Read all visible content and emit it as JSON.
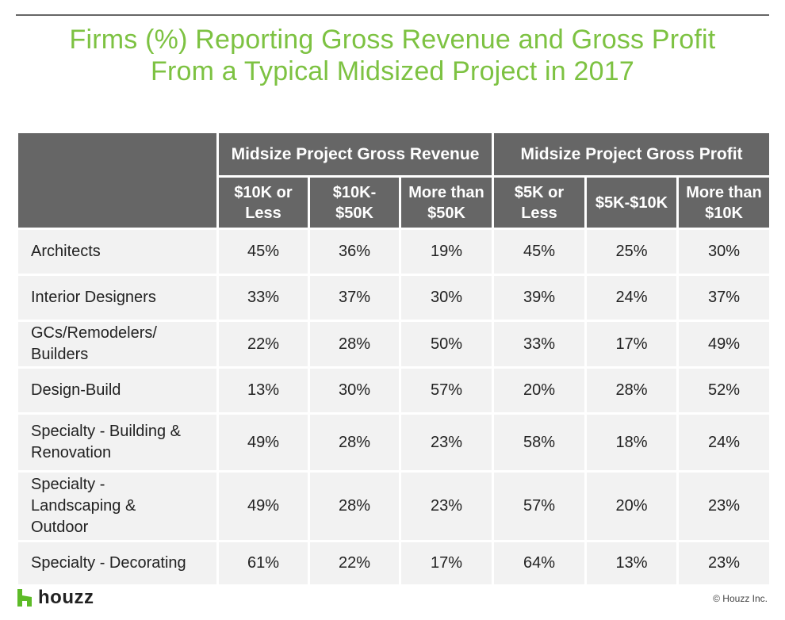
{
  "title": {
    "line1": "Firms (%) Reporting Gross Revenue and Gross Profit",
    "line2": "From a Typical Midsized Project in 2017"
  },
  "colors": {
    "title_green": "#7dc242",
    "header_gray": "#666666",
    "cell_bg": "#f2f2f2",
    "logo_green": "#5dbb28"
  },
  "table": {
    "groups": [
      {
        "label": "Midsize Project Gross Revenue"
      },
      {
        "label": "Midsize Project Gross Profit"
      }
    ],
    "columns": [
      {
        "line1": "$10K or",
        "line2": "Less"
      },
      {
        "line1": "$10K-",
        "line2": "$50K"
      },
      {
        "line1": "More than",
        "line2": "$50K"
      },
      {
        "line1": "$5K or",
        "line2": "Less"
      },
      {
        "line1": "$5K-$10K",
        "line2": ""
      },
      {
        "line1": "More than",
        "line2": "$10K"
      }
    ],
    "rows": [
      {
        "label": [
          "Architects"
        ],
        "values": [
          "45%",
          "36%",
          "19%",
          "45%",
          "25%",
          "30%"
        ]
      },
      {
        "label": [
          "Interior Designers"
        ],
        "values": [
          "33%",
          "37%",
          "30%",
          "39%",
          "24%",
          "37%"
        ]
      },
      {
        "label": [
          "GCs/Remodelers/",
          "Builders"
        ],
        "values": [
          "22%",
          "28%",
          "50%",
          "33%",
          "17%",
          "49%"
        ]
      },
      {
        "label": [
          "Design-Build"
        ],
        "values": [
          "13%",
          "30%",
          "57%",
          "20%",
          "28%",
          "52%"
        ]
      },
      {
        "label": [
          "Specialty - Building &",
          "Renovation"
        ],
        "values": [
          "49%",
          "28%",
          "23%",
          "58%",
          "18%",
          "24%"
        ]
      },
      {
        "label": [
          "Specialty -",
          "Landscaping &",
          "Outdoor"
        ],
        "values": [
          "49%",
          "28%",
          "23%",
          "57%",
          "20%",
          "23%"
        ]
      },
      {
        "label": [
          "Specialty - Decorating"
        ],
        "values": [
          "61%",
          "22%",
          "17%",
          "64%",
          "13%",
          "23%"
        ]
      }
    ]
  },
  "footer": {
    "logo_text": "houzz",
    "logo_icon": "houzz-h-icon",
    "copyright": "© Houzz Inc."
  }
}
